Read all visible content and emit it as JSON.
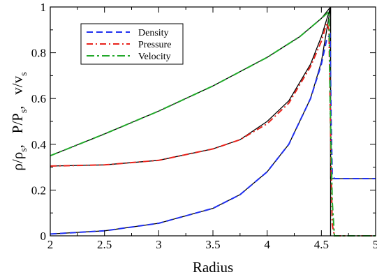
{
  "chart_data": {
    "type": "line",
    "xlabel": "Radius",
    "ylabel_parts": {
      "rho": "ρ/ρ",
      "rho_sub": "s",
      "sep1": ",   ",
      "p": "P/P",
      "p_sub": "s",
      "sep2": ",   ",
      "v": "v/v",
      "v_sub": "s"
    },
    "xlim": [
      2,
      5
    ],
    "ylim": [
      0,
      1
    ],
    "x_ticks": [
      2,
      2.5,
      3,
      3.5,
      4,
      4.5,
      5
    ],
    "x_tick_labels": [
      "2",
      "2.5",
      "3",
      "3.5",
      "4",
      "4.5",
      "5"
    ],
    "y_ticks": [
      0,
      0.2,
      0.4,
      0.6,
      0.8,
      1
    ],
    "y_tick_labels": [
      "0",
      "0.2",
      "0.4",
      "0.6",
      "0.8",
      "1"
    ],
    "grid": false,
    "legend_position": "top-left",
    "series": [
      {
        "name": "Density",
        "color": "#1f2ff0",
        "dash": "9,5",
        "x": [
          2,
          2.5,
          3,
          3.5,
          3.75,
          4,
          4.2,
          4.4,
          4.5,
          4.55,
          4.58,
          4.59,
          4.6,
          4.62,
          5
        ],
        "y": [
          0.008,
          0.022,
          0.055,
          0.12,
          0.18,
          0.28,
          0.4,
          0.6,
          0.75,
          0.86,
          0.88,
          0.5,
          0.27,
          0.25,
          0.25
        ]
      },
      {
        "name": "Pressure",
        "color": "#e8221b",
        "dash": "9,4,2,4",
        "x": [
          2,
          2.5,
          3,
          3.5,
          3.75,
          4,
          4.2,
          4.4,
          4.5,
          4.55,
          4.57,
          4.59,
          4.6,
          4.62,
          5
        ],
        "y": [
          0.305,
          0.31,
          0.33,
          0.38,
          0.42,
          0.49,
          0.58,
          0.74,
          0.85,
          0.93,
          0.9,
          0.3,
          0.05,
          0.0,
          0.0
        ]
      },
      {
        "name": "Velocity",
        "color": "#22a82a",
        "dash": "11,4,3,4",
        "x": [
          2,
          2.5,
          3,
          3.5,
          4,
          4.3,
          4.5,
          4.57,
          4.58,
          4.6,
          4.62,
          5
        ],
        "y": [
          0.35,
          0.445,
          0.545,
          0.655,
          0.78,
          0.87,
          0.95,
          0.98,
          0.6,
          0.15,
          0.0,
          0.0
        ]
      }
    ],
    "reference_curves": [
      {
        "color": "#000000",
        "x": [
          2,
          2.5,
          3,
          3.5,
          3.75,
          4,
          4.2,
          4.4,
          4.5,
          4.585,
          4.585,
          5
        ],
        "y": [
          0.008,
          0.022,
          0.055,
          0.12,
          0.18,
          0.28,
          0.4,
          0.6,
          0.76,
          1.0,
          0.25,
          0.25
        ]
      },
      {
        "color": "#000000",
        "x": [
          2,
          2.5,
          3,
          3.5,
          3.75,
          4,
          4.2,
          4.4,
          4.5,
          4.585,
          4.585
        ],
        "y": [
          0.305,
          0.31,
          0.33,
          0.38,
          0.42,
          0.5,
          0.59,
          0.75,
          0.87,
          1.0,
          0.0
        ]
      },
      {
        "color": "#000000",
        "x": [
          2,
          2.5,
          3,
          3.5,
          4,
          4.3,
          4.5,
          4.585
        ],
        "y": [
          0.35,
          0.445,
          0.545,
          0.655,
          0.78,
          0.87,
          0.95,
          1.0
        ]
      }
    ]
  }
}
